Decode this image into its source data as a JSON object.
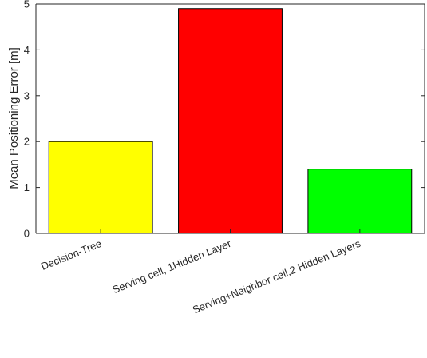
{
  "chart_data": {
    "type": "bar",
    "title": "",
    "xlabel": "",
    "ylabel": "Mean  Positioning Error [m]",
    "categories": [
      "Decision-Tree",
      "Serving cell, 1Hidden Layer",
      "Serving+Neighbor cell,2 Hidden Layers"
    ],
    "values": [
      2.0,
      4.9,
      1.4
    ],
    "colors": [
      "#ffff00",
      "#ff0000",
      "#00ff00"
    ],
    "ylim": [
      0,
      5
    ],
    "yticks": [
      0,
      1,
      2,
      3,
      4,
      5
    ],
    "grid": false,
    "legend": "none"
  }
}
